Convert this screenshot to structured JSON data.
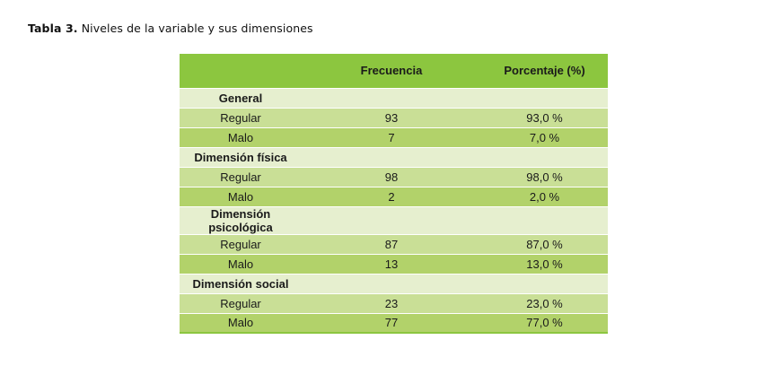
{
  "caption": {
    "label": "Tabla 3.",
    "text": "Niveles de la variable y sus dimensiones"
  },
  "table": {
    "headers": [
      "",
      "Frecuencia",
      "Porcentaje (%)"
    ],
    "groups": [
      {
        "name": "General",
        "rows": [
          {
            "level": "Regular",
            "frequency": "93",
            "percentage": "93,0 %"
          },
          {
            "level": "Malo",
            "frequency": "7",
            "percentage": "7,0 %"
          }
        ]
      },
      {
        "name": "Dimensión física",
        "rows": [
          {
            "level": "Regular",
            "frequency": "98",
            "percentage": "98,0 %"
          },
          {
            "level": "Malo",
            "frequency": "2",
            "percentage": "2,0 %"
          }
        ]
      },
      {
        "name": "Dimensión psicológica",
        "rows": [
          {
            "level": "Regular",
            "frequency": "87",
            "percentage": "87,0 %"
          },
          {
            "level": "Malo",
            "frequency": "13",
            "percentage": "13,0 %"
          }
        ]
      },
      {
        "name": "Dimensión social",
        "rows": [
          {
            "level": "Regular",
            "frequency": "23",
            "percentage": "23,0 %"
          },
          {
            "level": "Malo",
            "frequency": "77",
            "percentage": "77,0 %"
          }
        ]
      }
    ]
  },
  "colors": {
    "header": "#8cc63f",
    "group_row": "#e6efcf",
    "row_light": "#c9df96",
    "row_dark": "#b2d26a"
  }
}
